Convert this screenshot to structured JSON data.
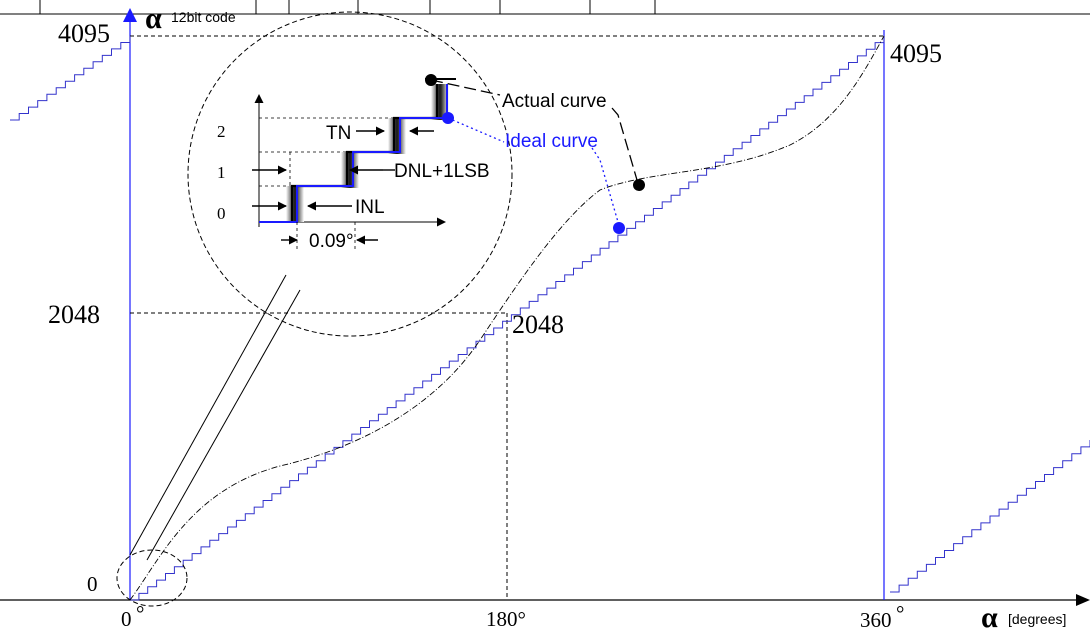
{
  "y_axis": {
    "symbol": "α",
    "unit": "12bit code",
    "tick_max": "4095",
    "tick_mid": "2048",
    "tick_zero": "0"
  },
  "x_axis": {
    "symbol": "α",
    "unit": "[degrees]",
    "tick_0": "0",
    "tick_180": "180°",
    "tick_360": "360"
  },
  "point_labels": {
    "top_right": "4095",
    "center": "2048"
  },
  "curves": {
    "actual": "Actual curve",
    "ideal": "Ideal curve",
    "ideal_color": "#1a1aff",
    "step_color": "#3333cc"
  },
  "inset": {
    "codes": [
      "0",
      "1",
      "2"
    ],
    "tn": "TN",
    "dnl": "DNL+1LSB",
    "inl": "INL",
    "step_width": "0.09°"
  }
}
